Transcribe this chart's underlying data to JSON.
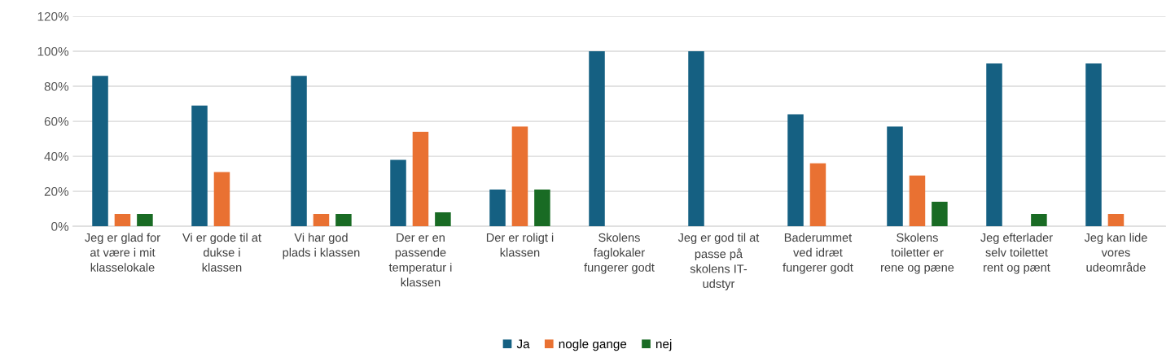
{
  "chart_data": {
    "type": "bar",
    "categories": [
      "Jeg er glad for\nat være i mit\nklasselokale",
      "Vi er gode til at\ndukse i\nklassen",
      "Vi har god\nplads i klassen",
      "Der er en\npassende\ntemperatur i\nklassen",
      "Der er roligt i\nklassen",
      "Skolens\nfaglokaler\nfungerer godt",
      "Jeg er god til at\npasse på\nskolens IT-\nudstyr",
      "Baderummet\nved idræt\nfungerer godt",
      "Skolens\ntoiletter er\nrene og pæne",
      "Jeg efterlader\nselv toilettet\nrent og pænt",
      "Jeg kan lide\nvores\nudeområde"
    ],
    "series": [
      {
        "name": "Ja",
        "color": "#156082",
        "values": [
          86,
          69,
          86,
          38,
          21,
          100,
          100,
          64,
          57,
          93,
          93
        ]
      },
      {
        "name": "nogle gange",
        "color": "#e97132",
        "values": [
          7,
          31,
          7,
          54,
          57,
          0,
          0,
          36,
          29,
          0,
          7
        ]
      },
      {
        "name": "nej",
        "color": "#196b24",
        "values": [
          7,
          0,
          7,
          8,
          21,
          0,
          0,
          0,
          14,
          7,
          0
        ]
      }
    ],
    "ylim": [
      0,
      120
    ],
    "yticks": [
      {
        "value": 0,
        "label": "0%"
      },
      {
        "value": 20,
        "label": "20%"
      },
      {
        "value": 40,
        "label": "40%"
      },
      {
        "value": 60,
        "label": "60%"
      },
      {
        "value": 80,
        "label": "80%"
      },
      {
        "value": 100,
        "label": "100%"
      },
      {
        "value": 120,
        "label": "120%"
      }
    ],
    "grid": "y",
    "legend": "bottom"
  }
}
